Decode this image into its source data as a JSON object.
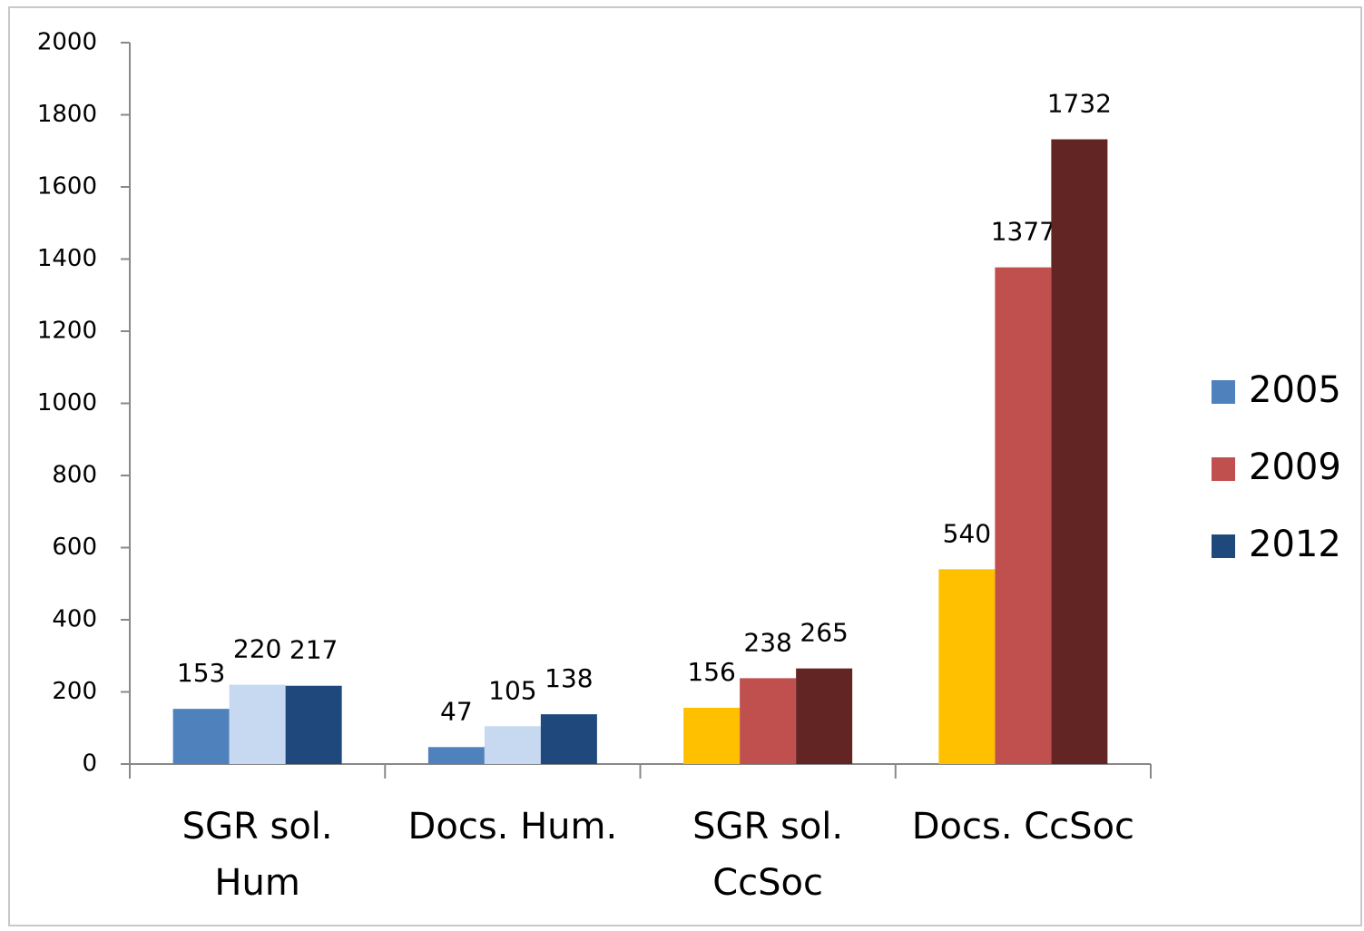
{
  "chart_data": {
    "type": "bar",
    "categories": [
      "SGR sol.\nHum",
      "Docs. Hum.",
      "SGR sol.\nCcSoc",
      "Docs. CcSoc"
    ],
    "series": [
      {
        "name": "2005",
        "color": "#4f81bd",
        "colors": [
          "#4f81bd",
          "#4f81bd",
          "#ffc000",
          "#ffc000"
        ],
        "values": [
          153,
          47,
          156,
          540
        ]
      },
      {
        "name": "2009",
        "color": "#c0504d",
        "colors": [
          "#c6d9f1",
          "#c6d9f1",
          "#c0504d",
          "#c0504d"
        ],
        "values": [
          220,
          105,
          238,
          1377
        ]
      },
      {
        "name": "2012",
        "color": "#1f497d",
        "colors": [
          "#1f497d",
          "#1f497d",
          "#632523",
          "#632523"
        ],
        "values": [
          217,
          138,
          265,
          1732
        ]
      }
    ],
    "ylim": [
      0,
      2000
    ],
    "yticks": [
      0,
      200,
      400,
      600,
      800,
      1000,
      1200,
      1400,
      1600,
      1800,
      2000
    ],
    "grid": false,
    "legend": "right"
  }
}
